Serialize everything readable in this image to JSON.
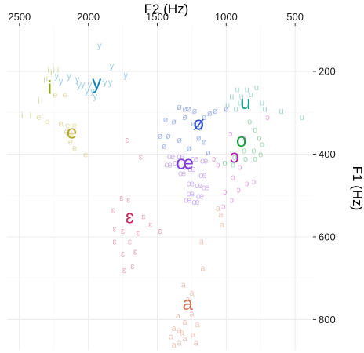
{
  "chart_data": {
    "type": "scatter",
    "title": "",
    "xlabel": "F2 (Hz)",
    "ylabel": "F1 (Hz)",
    "x_axis_position": "top",
    "y_axis_position": "right",
    "x_reversed": true,
    "y_reversed": true,
    "xlim": [
      2590,
      370
    ],
    "ylim": [
      90,
      875
    ],
    "x_ticks": [
      2500,
      2000,
      1500,
      1000,
      500
    ],
    "x_tick_labels": [
      "2500",
      "2000",
      "1500",
      "1000",
      "500"
    ],
    "y_ticks": [
      200,
      400,
      600,
      800
    ],
    "y_tick_labels": [
      "200",
      "400",
      "600",
      "800"
    ],
    "grid": true,
    "legend": "none",
    "series": [
      {
        "vowel": "i",
        "color": "#8ea50f",
        "centroid": [
          2280,
          240
        ],
        "tokens": [
          [
            2290,
            197
          ],
          [
            2250,
            197
          ],
          [
            2300,
            217
          ],
          [
            2320,
            222
          ],
          [
            2270,
            205
          ],
          [
            2360,
            272
          ],
          [
            2480,
            307
          ],
          [
            2420,
            307
          ],
          [
            2220,
            197
          ]
        ]
      },
      {
        "vowel": "y",
        "color": "#0f82b4",
        "centroid": [
          1940,
          228
        ],
        "tokens": [
          [
            1920,
            138
          ],
          [
            1830,
            188
          ],
          [
            1730,
            210
          ],
          [
            2230,
            212
          ],
          [
            2140,
            212
          ],
          [
            2080,
            220
          ],
          [
            2200,
            225
          ],
          [
            2040,
            232
          ],
          [
            1990,
            232
          ],
          [
            1880,
            227
          ],
          [
            1840,
            227
          ],
          [
            2010,
            248
          ],
          [
            1970,
            248
          ],
          [
            2070,
            235
          ],
          [
            1950,
            262
          ]
        ]
      },
      {
        "vowel": "e",
        "color": "#b4ac28",
        "centroid": [
          2120,
          348
        ],
        "tokens": [
          [
            2240,
            258
          ],
          [
            2170,
            258
          ],
          [
            2360,
            312
          ],
          [
            2300,
            322
          ],
          [
            2200,
            327
          ],
          [
            2150,
            332
          ],
          [
            2100,
            332
          ],
          [
            2160,
            347
          ],
          [
            2120,
            357
          ],
          [
            2130,
            372
          ],
          [
            2100,
            387
          ],
          [
            2020,
            402
          ]
        ]
      },
      {
        "vowel": "ø",
        "color": "#2c52c8",
        "centroid": [
          1200,
          327
        ],
        "tokens": [
          [
            1340,
            287
          ],
          [
            1300,
            292
          ],
          [
            1270,
            292
          ],
          [
            1230,
            297
          ],
          [
            1080,
            297
          ],
          [
            1000,
            292
          ],
          [
            1120,
            302
          ],
          [
            1160,
            312
          ],
          [
            1300,
            312
          ],
          [
            1440,
            318
          ],
          [
            1380,
            322
          ],
          [
            1240,
            327
          ],
          [
            1190,
            337
          ],
          [
            1480,
            357
          ],
          [
            1420,
            357
          ],
          [
            1340,
            367
          ],
          [
            1200,
            362
          ],
          [
            1160,
            372
          ],
          [
            1450,
            382
          ],
          [
            1270,
            387
          ],
          [
            1130,
            397
          ]
        ]
      },
      {
        "vowel": "œ",
        "color": "#8040d8",
        "centroid": [
          1300,
          422
        ],
        "tokens": [
          [
            1400,
            407
          ],
          [
            1330,
            407
          ],
          [
            1230,
            412
          ],
          [
            1160,
            417
          ],
          [
            1360,
            422
          ],
          [
            1420,
            427
          ],
          [
            1290,
            432
          ],
          [
            1250,
            437
          ],
          [
            1320,
            447
          ],
          [
            1170,
            452
          ],
          [
            1260,
            472
          ],
          [
            1200,
            477
          ],
          [
            1150,
            482
          ],
          [
            1260,
            497
          ],
          [
            1190,
            502
          ],
          [
            1280,
            512
          ],
          [
            1220,
            517
          ]
        ]
      },
      {
        "vowel": "u",
        "color": "#1aa08e",
        "centroid": [
          860,
          277
        ],
        "tokens": [
          [
            920,
            245
          ],
          [
            850,
            245
          ],
          [
            780,
            240
          ],
          [
            960,
            262
          ],
          [
            890,
            262
          ],
          [
            820,
            257
          ],
          [
            900,
            277
          ],
          [
            740,
            277
          ],
          [
            990,
            282
          ],
          [
            930,
            292
          ],
          [
            720,
            292
          ],
          [
            600,
            297
          ],
          [
            450,
            312
          ]
        ]
      },
      {
        "vowel": "o",
        "color": "#1a9e42",
        "centroid": [
          890,
          368
        ],
        "tokens": [
          [
            830,
            322
          ],
          [
            790,
            342
          ],
          [
            760,
            362
          ],
          [
            740,
            377
          ],
          [
            870,
            392
          ],
          [
            800,
            392
          ],
          [
            750,
            402
          ],
          [
            940,
            408
          ],
          [
            860,
            412
          ],
          [
            790,
            412
          ],
          [
            1010,
            422
          ],
          [
            950,
            427
          ]
        ]
      },
      {
        "vowel": "ɔ",
        "color": "#c018b0",
        "centroid": [
          940,
          407
        ],
        "tokens": [
          [
            700,
            312
          ],
          [
            970,
            352
          ],
          [
            870,
            362
          ],
          [
            1090,
            412
          ],
          [
            1060,
            427
          ],
          [
            900,
            432
          ],
          [
            950,
            457
          ],
          [
            850,
            472
          ],
          [
            800,
            467
          ],
          [
            910,
            487
          ],
          [
            1010,
            492
          ],
          [
            960,
            512
          ],
          [
            1020,
            527
          ]
        ]
      },
      {
        "vowel": "ɛ",
        "color": "#c8285a",
        "centroid": [
          1700,
          553
        ],
        "tokens": [
          [
            1720,
            367
          ],
          [
            1620,
            408
          ],
          [
            1760,
            507
          ],
          [
            1710,
            512
          ],
          [
            1820,
            537
          ],
          [
            1600,
            552
          ],
          [
            1550,
            572
          ],
          [
            1480,
            587
          ],
          [
            1810,
            582
          ],
          [
            1750,
            587
          ],
          [
            1640,
            592
          ],
          [
            1700,
            612
          ],
          [
            1810,
            612
          ],
          [
            1660,
            637
          ],
          [
            1750,
            642
          ],
          [
            1680,
            672
          ],
          [
            1740,
            682
          ]
        ]
      },
      {
        "vowel": "a",
        "color": "#c8785a",
        "centroid": [
          1280,
          762
        ],
        "tokens": [
          [
            1060,
            532
          ],
          [
            1040,
            547
          ],
          [
            1030,
            572
          ],
          [
            1180,
            612
          ],
          [
            1170,
            677
          ],
          [
            1310,
            717
          ],
          [
            1250,
            737
          ],
          [
            1280,
            752
          ],
          [
            1250,
            787
          ],
          [
            1350,
            792
          ],
          [
            1300,
            807
          ],
          [
            1210,
            812
          ],
          [
            1380,
            822
          ],
          [
            1340,
            827
          ],
          [
            1320,
            832
          ],
          [
            1240,
            837
          ],
          [
            1400,
            842
          ],
          [
            1300,
            847
          ],
          [
            1340,
            857
          ],
          [
            1220,
            857
          ],
          [
            1380,
            862
          ]
        ]
      }
    ]
  }
}
